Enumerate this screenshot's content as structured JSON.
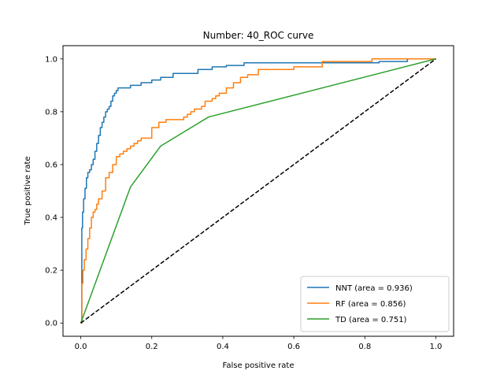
{
  "chart_data": {
    "type": "line",
    "title": "Number: 40_ROC curve",
    "xlabel": "False positive rate",
    "ylabel": "True positive rate",
    "xlim": [
      -0.05,
      1.05
    ],
    "ylim": [
      -0.05,
      1.05
    ],
    "xticks": [
      0.0,
      0.2,
      0.4,
      0.6,
      0.8,
      1.0
    ],
    "yticks": [
      0.0,
      0.2,
      0.4,
      0.6,
      0.8,
      1.0
    ],
    "xtick_labels": [
      "0.0",
      "0.2",
      "0.4",
      "0.6",
      "0.8",
      "1.0"
    ],
    "ytick_labels": [
      "0.0",
      "0.2",
      "0.4",
      "0.6",
      "0.8",
      "1.0"
    ],
    "grid": false,
    "legend_position": "bottom-right",
    "series": [
      {
        "name": "NNT (area = 0.936)",
        "color": "#1f77b4",
        "step": true,
        "x": [
          0.0,
          0.003,
          0.005,
          0.008,
          0.012,
          0.016,
          0.02,
          0.025,
          0.03,
          0.035,
          0.04,
          0.045,
          0.05,
          0.055,
          0.06,
          0.065,
          0.07,
          0.075,
          0.08,
          0.085,
          0.09,
          0.095,
          0.1,
          0.105,
          0.115,
          0.14,
          0.17,
          0.2,
          0.225,
          0.26,
          0.33,
          0.37,
          0.41,
          0.46,
          0.55,
          0.65,
          0.7,
          0.75,
          0.8,
          0.84,
          0.9,
          0.92,
          1.0
        ],
        "y": [
          0.0,
          0.36,
          0.42,
          0.47,
          0.51,
          0.55,
          0.57,
          0.58,
          0.6,
          0.62,
          0.65,
          0.68,
          0.71,
          0.74,
          0.76,
          0.78,
          0.8,
          0.81,
          0.82,
          0.84,
          0.86,
          0.87,
          0.88,
          0.89,
          0.89,
          0.9,
          0.91,
          0.92,
          0.93,
          0.945,
          0.96,
          0.97,
          0.975,
          0.985,
          0.985,
          0.985,
          0.985,
          0.985,
          0.985,
          0.99,
          0.99,
          1.0,
          1.0
        ]
      },
      {
        "name": "RF (area = 0.856)",
        "color": "#ff7f0e",
        "step": true,
        "x": [
          0.0,
          0.003,
          0.006,
          0.01,
          0.015,
          0.02,
          0.025,
          0.03,
          0.035,
          0.04,
          0.045,
          0.05,
          0.06,
          0.07,
          0.08,
          0.09,
          0.1,
          0.11,
          0.12,
          0.13,
          0.14,
          0.15,
          0.16,
          0.17,
          0.18,
          0.2,
          0.22,
          0.24,
          0.27,
          0.29,
          0.3,
          0.31,
          0.32,
          0.34,
          0.35,
          0.37,
          0.38,
          0.39,
          0.41,
          0.43,
          0.45,
          0.47,
          0.5,
          0.55,
          0.6,
          0.68,
          0.75,
          0.82,
          0.9,
          1.0
        ],
        "y": [
          0.0,
          0.15,
          0.2,
          0.24,
          0.28,
          0.32,
          0.36,
          0.4,
          0.42,
          0.43,
          0.45,
          0.47,
          0.5,
          0.55,
          0.57,
          0.6,
          0.63,
          0.64,
          0.65,
          0.66,
          0.67,
          0.68,
          0.69,
          0.7,
          0.7,
          0.74,
          0.76,
          0.77,
          0.77,
          0.78,
          0.79,
          0.8,
          0.81,
          0.82,
          0.84,
          0.85,
          0.86,
          0.87,
          0.89,
          0.91,
          0.93,
          0.94,
          0.96,
          0.96,
          0.97,
          0.99,
          0.99,
          1.0,
          1.0,
          1.0
        ]
      },
      {
        "name": "TD (area = 0.751)",
        "color": "#2ca02c",
        "step": false,
        "x": [
          0.0,
          0.14,
          0.225,
          0.36,
          1.0
        ],
        "y": [
          0.0,
          0.515,
          0.67,
          0.78,
          1.0
        ]
      },
      {
        "name": "",
        "color": "#000000",
        "step": false,
        "dashed": true,
        "x": [
          0.0,
          1.0
        ],
        "y": [
          0.0,
          1.0
        ]
      }
    ]
  }
}
